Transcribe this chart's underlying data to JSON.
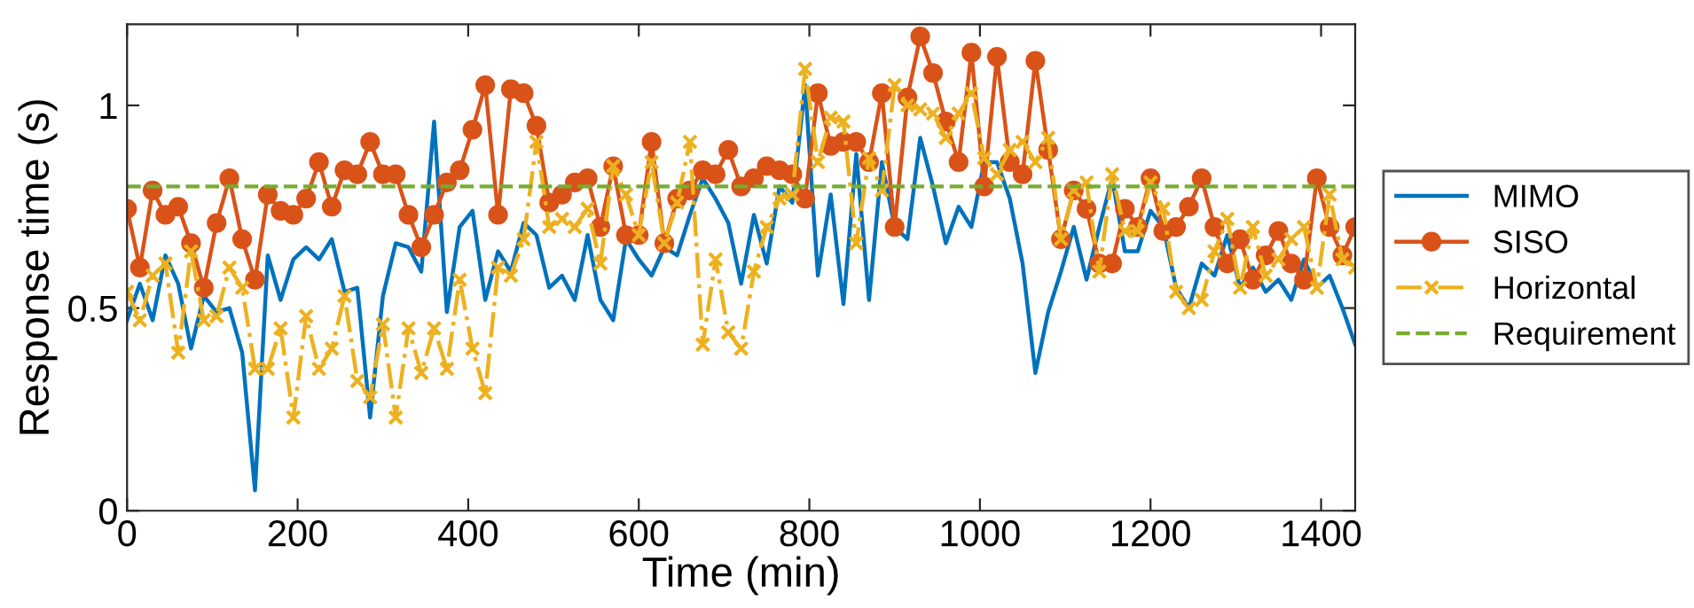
{
  "chart_data": {
    "type": "line",
    "xlabel": "Time (min)",
    "ylabel": "Response time (s)",
    "x": [
      0,
      15,
      30,
      45,
      60,
      75,
      90,
      105,
      120,
      135,
      150,
      165,
      180,
      195,
      210,
      225,
      240,
      255,
      270,
      285,
      300,
      315,
      330,
      345,
      360,
      375,
      390,
      405,
      420,
      435,
      450,
      465,
      480,
      495,
      510,
      525,
      540,
      555,
      570,
      585,
      600,
      615,
      630,
      645,
      660,
      675,
      690,
      705,
      720,
      735,
      750,
      765,
      780,
      795,
      810,
      825,
      840,
      855,
      870,
      885,
      900,
      915,
      930,
      945,
      960,
      975,
      990,
      1005,
      1020,
      1035,
      1050,
      1065,
      1080,
      1095,
      1110,
      1125,
      1140,
      1155,
      1170,
      1185,
      1200,
      1215,
      1230,
      1245,
      1260,
      1275,
      1290,
      1305,
      1320,
      1335,
      1350,
      1365,
      1380,
      1395,
      1410,
      1425,
      1440
    ],
    "series": [
      {
        "name": "MIMO",
        "color": "#0072bd",
        "marker": "none",
        "line_style": "solid",
        "values": [
          0.47,
          0.56,
          0.47,
          0.63,
          0.56,
          0.4,
          0.53,
          0.49,
          0.5,
          0.39,
          0.05,
          0.63,
          0.52,
          0.62,
          0.65,
          0.62,
          0.67,
          0.54,
          0.55,
          0.23,
          0.53,
          0.66,
          0.65,
          0.59,
          0.96,
          0.49,
          0.7,
          0.74,
          0.52,
          0.64,
          0.59,
          0.71,
          0.68,
          0.55,
          0.58,
          0.52,
          0.68,
          0.52,
          0.47,
          0.67,
          0.62,
          0.58,
          0.65,
          0.63,
          0.73,
          0.82,
          0.77,
          0.71,
          0.56,
          0.73,
          0.61,
          0.8,
          0.76,
          1.05,
          0.58,
          0.78,
          0.51,
          0.88,
          0.52,
          0.86,
          0.7,
          0.67,
          0.92,
          0.8,
          0.66,
          0.75,
          0.7,
          0.86,
          0.86,
          0.77,
          0.61,
          0.34,
          0.49,
          0.59,
          0.7,
          0.57,
          0.7,
          0.82,
          0.64,
          0.64,
          0.74,
          0.7,
          0.55,
          0.5,
          0.61,
          0.58,
          0.68,
          0.55,
          0.6,
          0.54,
          0.57,
          0.52,
          0.62,
          0.55,
          0.58,
          0.5,
          0.41
        ]
      },
      {
        "name": "SISO",
        "color": "#d95319",
        "marker": "circle",
        "line_style": "solid",
        "values": [
          0.745,
          0.6,
          0.79,
          0.73,
          0.75,
          0.66,
          0.55,
          0.71,
          0.82,
          0.67,
          0.57,
          0.78,
          0.74,
          0.73,
          0.77,
          0.86,
          0.75,
          0.84,
          0.83,
          0.91,
          0.83,
          0.83,
          0.73,
          0.65,
          0.73,
          0.81,
          0.84,
          0.94,
          1.05,
          0.73,
          1.04,
          1.03,
          0.95,
          0.76,
          0.78,
          0.81,
          0.82,
          0.7,
          0.85,
          0.68,
          0.68,
          0.91,
          0.66,
          0.77,
          0.79,
          0.84,
          0.83,
          0.89,
          0.8,
          0.82,
          0.85,
          0.84,
          0.83,
          0.77,
          1.03,
          0.9,
          0.91,
          0.91,
          0.86,
          1.03,
          0.7,
          1.02,
          1.17,
          1.08,
          0.96,
          0.86,
          1.13,
          0.8,
          1.12,
          0.86,
          0.83,
          1.11,
          0.89,
          0.67,
          0.79,
          0.745,
          0.61,
          0.61,
          0.745,
          0.7,
          0.82,
          0.69,
          0.7,
          0.75,
          0.82,
          0.7,
          0.61,
          0.67,
          0.57,
          0.63,
          0.69,
          0.61,
          0.57,
          0.82,
          0.7,
          0.63,
          0.7
        ]
      },
      {
        "name": "Horizontal",
        "color": "#edb120",
        "marker": "cross",
        "line_style": "dashdot",
        "values": [
          0.54,
          0.47,
          0.58,
          0.61,
          0.39,
          0.64,
          0.47,
          0.48,
          0.6,
          0.55,
          0.35,
          0.35,
          0.45,
          0.23,
          0.48,
          0.35,
          0.4,
          0.53,
          0.32,
          0.28,
          0.46,
          0.23,
          0.45,
          0.34,
          0.45,
          0.35,
          0.57,
          0.4,
          0.29,
          0.6,
          0.58,
          0.67,
          0.91,
          0.7,
          0.72,
          0.7,
          0.745,
          0.61,
          0.85,
          0.78,
          0.68,
          0.86,
          0.66,
          0.76,
          0.91,
          0.41,
          0.62,
          0.44,
          0.4,
          0.59,
          0.7,
          0.77,
          0.78,
          1.09,
          0.86,
          0.97,
          0.96,
          0.66,
          0.87,
          0.79,
          1.05,
          1.0,
          0.99,
          0.98,
          0.92,
          0.98,
          1.03,
          0.87,
          0.83,
          0.89,
          0.91,
          0.86,
          0.92,
          0.67,
          0.79,
          0.81,
          0.59,
          0.83,
          0.69,
          0.69,
          0.81,
          0.745,
          0.54,
          0.5,
          0.52,
          0.64,
          0.72,
          0.55,
          0.7,
          0.58,
          0.62,
          0.67,
          0.7,
          0.55,
          0.78,
          0.62,
          0.6
        ]
      }
    ],
    "ref_lines": [
      {
        "axis": "y",
        "value": 0.8,
        "label": "Requirement",
        "color": "#77ac30",
        "line_style": "dashed"
      }
    ],
    "xlim": [
      0,
      1440
    ],
    "xticks": [
      0,
      200,
      400,
      600,
      800,
      1000,
      1200,
      1400
    ],
    "ylim": [
      0,
      1.2
    ],
    "yticks": [
      0,
      0.5,
      1
    ],
    "grid": false,
    "legend": "right"
  }
}
